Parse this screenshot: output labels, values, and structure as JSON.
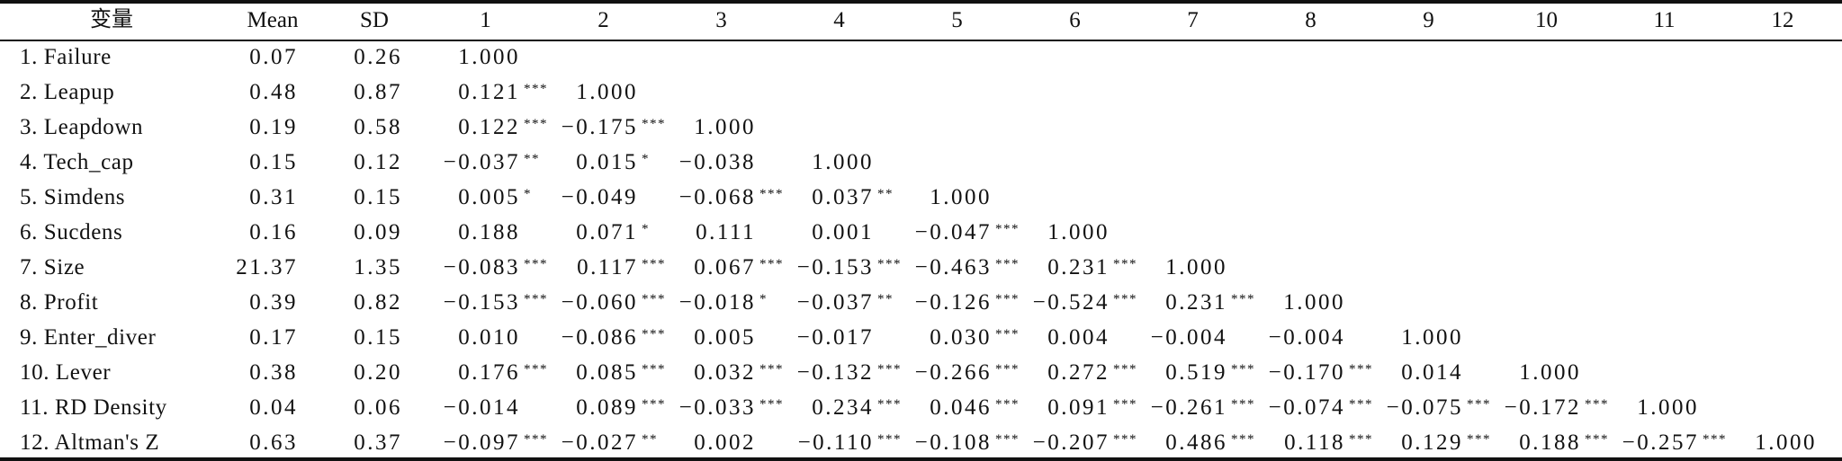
{
  "table": {
    "header": {
      "variable": "变量",
      "mean": "Mean",
      "sd": "SD",
      "columns": [
        "1",
        "2",
        "3",
        "4",
        "5",
        "6",
        "7",
        "8",
        "9",
        "10",
        "11",
        "12"
      ]
    },
    "rows": [
      {
        "label": "1. Failure",
        "mean": "0.07",
        "sd": "0.26",
        "correlations": [
          {
            "value": "1.000",
            "stars": ""
          }
        ]
      },
      {
        "label": "2. Leapup",
        "mean": "0.48",
        "sd": "0.87",
        "correlations": [
          {
            "value": "0.121",
            "stars": "***"
          },
          {
            "value": "1.000",
            "stars": ""
          }
        ]
      },
      {
        "label": "3. Leapdown",
        "mean": "0.19",
        "sd": "0.58",
        "correlations": [
          {
            "value": "0.122",
            "stars": "***"
          },
          {
            "value": "−0.175",
            "stars": "***"
          },
          {
            "value": "1.000",
            "stars": ""
          }
        ]
      },
      {
        "label": "4. Tech_cap",
        "mean": "0.15",
        "sd": "0.12",
        "correlations": [
          {
            "value": "−0.037",
            "stars": "**"
          },
          {
            "value": "0.015",
            "stars": "*"
          },
          {
            "value": "−0.038",
            "stars": ""
          },
          {
            "value": "1.000",
            "stars": ""
          }
        ]
      },
      {
        "label": "5. Simdens",
        "mean": "0.31",
        "sd": "0.15",
        "correlations": [
          {
            "value": "0.005",
            "stars": "*"
          },
          {
            "value": "−0.049",
            "stars": ""
          },
          {
            "value": "−0.068",
            "stars": "***"
          },
          {
            "value": "0.037",
            "stars": "**"
          },
          {
            "value": "1.000",
            "stars": ""
          }
        ]
      },
      {
        "label": "6. Sucdens",
        "mean": "0.16",
        "sd": "0.09",
        "correlations": [
          {
            "value": "0.188",
            "stars": ""
          },
          {
            "value": "0.071",
            "stars": "*"
          },
          {
            "value": "0.111",
            "stars": ""
          },
          {
            "value": "0.001",
            "stars": ""
          },
          {
            "value": "−0.047",
            "stars": "***"
          },
          {
            "value": "1.000",
            "stars": ""
          }
        ]
      },
      {
        "label": "7. Size",
        "mean": "21.37",
        "sd": "1.35",
        "correlations": [
          {
            "value": "−0.083",
            "stars": "***"
          },
          {
            "value": "0.117",
            "stars": "***"
          },
          {
            "value": "0.067",
            "stars": "***"
          },
          {
            "value": "−0.153",
            "stars": "***"
          },
          {
            "value": "−0.463",
            "stars": "***"
          },
          {
            "value": "0.231",
            "stars": "***"
          },
          {
            "value": "1.000",
            "stars": ""
          }
        ]
      },
      {
        "label": "8. Profit",
        "mean": "0.39",
        "sd": "0.82",
        "correlations": [
          {
            "value": "−0.153",
            "stars": "***"
          },
          {
            "value": "−0.060",
            "stars": "***"
          },
          {
            "value": "−0.018",
            "stars": "*"
          },
          {
            "value": "−0.037",
            "stars": "**"
          },
          {
            "value": "−0.126",
            "stars": "***"
          },
          {
            "value": "−0.524",
            "stars": "***"
          },
          {
            "value": "0.231",
            "stars": "***"
          },
          {
            "value": "1.000",
            "stars": ""
          }
        ]
      },
      {
        "label": "9. Enter_diver",
        "mean": "0.17",
        "sd": "0.15",
        "correlations": [
          {
            "value": "0.010",
            "stars": ""
          },
          {
            "value": "−0.086",
            "stars": "***"
          },
          {
            "value": "0.005",
            "stars": ""
          },
          {
            "value": "−0.017",
            "stars": ""
          },
          {
            "value": "0.030",
            "stars": "***"
          },
          {
            "value": "0.004",
            "stars": ""
          },
          {
            "value": "−0.004",
            "stars": ""
          },
          {
            "value": "−0.004",
            "stars": ""
          },
          {
            "value": "1.000",
            "stars": ""
          }
        ]
      },
      {
        "label": "10. Lever",
        "mean": "0.38",
        "sd": "0.20",
        "correlations": [
          {
            "value": "0.176",
            "stars": "***"
          },
          {
            "value": "0.085",
            "stars": "***"
          },
          {
            "value": "0.032",
            "stars": "***"
          },
          {
            "value": "−0.132",
            "stars": "***"
          },
          {
            "value": "−0.266",
            "stars": "***"
          },
          {
            "value": "0.272",
            "stars": "***"
          },
          {
            "value": "0.519",
            "stars": "***"
          },
          {
            "value": "−0.170",
            "stars": "***"
          },
          {
            "value": "0.014",
            "stars": ""
          },
          {
            "value": "1.000",
            "stars": ""
          }
        ]
      },
      {
        "label": "11. RD Density",
        "mean": "0.04",
        "sd": "0.06",
        "correlations": [
          {
            "value": "−0.014",
            "stars": ""
          },
          {
            "value": "0.089",
            "stars": "***"
          },
          {
            "value": "−0.033",
            "stars": "***"
          },
          {
            "value": "0.234",
            "stars": "***"
          },
          {
            "value": "0.046",
            "stars": "***"
          },
          {
            "value": "0.091",
            "stars": "***"
          },
          {
            "value": "−0.261",
            "stars": "***"
          },
          {
            "value": "−0.074",
            "stars": "***"
          },
          {
            "value": "−0.075",
            "stars": "***"
          },
          {
            "value": "−0.172",
            "stars": "***"
          },
          {
            "value": "1.000",
            "stars": ""
          }
        ]
      },
      {
        "label": "12. Altman's Z",
        "mean": "0.63",
        "sd": "0.37",
        "correlations": [
          {
            "value": "−0.097",
            "stars": "***"
          },
          {
            "value": "−0.027",
            "stars": "**"
          },
          {
            "value": "0.002",
            "stars": ""
          },
          {
            "value": "−0.110",
            "stars": "***"
          },
          {
            "value": "−0.108",
            "stars": "***"
          },
          {
            "value": "−0.207",
            "stars": "***"
          },
          {
            "value": "0.486",
            "stars": "***"
          },
          {
            "value": "0.118",
            "stars": "***"
          },
          {
            "value": "0.129",
            "stars": "***"
          },
          {
            "value": "0.188",
            "stars": "***"
          },
          {
            "value": "−0.257",
            "stars": "***"
          },
          {
            "value": "1.000",
            "stars": ""
          }
        ]
      }
    ]
  }
}
